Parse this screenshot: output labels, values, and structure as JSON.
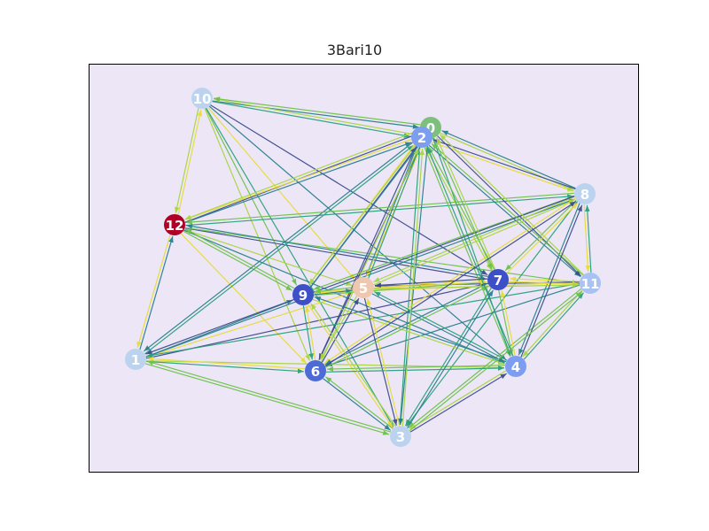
{
  "title": "3Bari10",
  "colors": {
    "plot_background": "#ede6f6",
    "frame": "#000000",
    "edge_palette": [
      "#3b4d8f",
      "#2a7f8e",
      "#28a17a",
      "#6cc24a",
      "#a8d640",
      "#e6dc3a"
    ]
  },
  "nodes": [
    {
      "id": "0",
      "color": "#7dbf7d"
    },
    {
      "id": "1",
      "color": "#bcd3f0"
    },
    {
      "id": "2",
      "color": "#7d9ef0"
    },
    {
      "id": "3",
      "color": "#bcd3f0"
    },
    {
      "id": "4",
      "color": "#7d9ef0"
    },
    {
      "id": "5",
      "color": "#efc6ae"
    },
    {
      "id": "6",
      "color": "#4c6ad8"
    },
    {
      "id": "7",
      "color": "#3d50c8"
    },
    {
      "id": "8",
      "color": "#bcd3f0"
    },
    {
      "id": "9",
      "color": "#3d50c8"
    },
    {
      "id": "10",
      "color": "#bcd3f0"
    },
    {
      "id": "11",
      "color": "#a7c2f3"
    },
    {
      "id": "12",
      "color": "#b10026"
    }
  ],
  "edges": [
    [
      "10",
      "0"
    ],
    [
      "10",
      "2"
    ],
    [
      "10",
      "9"
    ],
    [
      "10",
      "6"
    ],
    [
      "10",
      "5"
    ],
    [
      "10",
      "7"
    ],
    [
      "10",
      "4"
    ],
    [
      "10",
      "3"
    ],
    [
      "10",
      "12"
    ],
    [
      "12",
      "10"
    ],
    [
      "12",
      "1"
    ],
    [
      "12",
      "0"
    ],
    [
      "12",
      "2"
    ],
    [
      "12",
      "8"
    ],
    [
      "12",
      "9"
    ],
    [
      "12",
      "5"
    ],
    [
      "12",
      "6"
    ],
    [
      "12",
      "7"
    ],
    [
      "12",
      "4"
    ],
    [
      "12",
      "11"
    ],
    [
      "1",
      "12"
    ],
    [
      "1",
      "9"
    ],
    [
      "1",
      "6"
    ],
    [
      "1",
      "3"
    ],
    [
      "1",
      "4"
    ],
    [
      "1",
      "5"
    ],
    [
      "1",
      "7"
    ],
    [
      "1",
      "8"
    ],
    [
      "1",
      "2"
    ],
    [
      "2",
      "10"
    ],
    [
      "2",
      "12"
    ],
    [
      "2",
      "9"
    ],
    [
      "2",
      "6"
    ],
    [
      "2",
      "5"
    ],
    [
      "2",
      "3"
    ],
    [
      "2",
      "4"
    ],
    [
      "2",
      "7"
    ],
    [
      "2",
      "8"
    ],
    [
      "2",
      "11"
    ],
    [
      "2",
      "1"
    ],
    [
      "0",
      "10"
    ],
    [
      "0",
      "12"
    ],
    [
      "0",
      "9"
    ],
    [
      "0",
      "5"
    ],
    [
      "0",
      "6"
    ],
    [
      "0",
      "3"
    ],
    [
      "0",
      "4"
    ],
    [
      "0",
      "7"
    ],
    [
      "0",
      "8"
    ],
    [
      "0",
      "11"
    ],
    [
      "8",
      "2"
    ],
    [
      "8",
      "0"
    ],
    [
      "8",
      "12"
    ],
    [
      "8",
      "9"
    ],
    [
      "8",
      "5"
    ],
    [
      "8",
      "6"
    ],
    [
      "8",
      "1"
    ],
    [
      "8",
      "4"
    ],
    [
      "8",
      "3"
    ],
    [
      "8",
      "7"
    ],
    [
      "8",
      "11"
    ],
    [
      "11",
      "8"
    ],
    [
      "11",
      "2"
    ],
    [
      "11",
      "0"
    ],
    [
      "11",
      "9"
    ],
    [
      "11",
      "5"
    ],
    [
      "11",
      "6"
    ],
    [
      "11",
      "1"
    ],
    [
      "11",
      "3"
    ],
    [
      "11",
      "4"
    ],
    [
      "11",
      "7"
    ],
    [
      "7",
      "2"
    ],
    [
      "7",
      "0"
    ],
    [
      "7",
      "9"
    ],
    [
      "7",
      "5"
    ],
    [
      "7",
      "6"
    ],
    [
      "7",
      "3"
    ],
    [
      "7",
      "4"
    ],
    [
      "7",
      "11"
    ],
    [
      "7",
      "8"
    ],
    [
      "7",
      "12"
    ],
    [
      "9",
      "5"
    ],
    [
      "9",
      "6"
    ],
    [
      "9",
      "7"
    ],
    [
      "9",
      "4"
    ],
    [
      "9",
      "3"
    ],
    [
      "9",
      "2"
    ],
    [
      "9",
      "0"
    ],
    [
      "9",
      "12"
    ],
    [
      "5",
      "9"
    ],
    [
      "5",
      "6"
    ],
    [
      "5",
      "7"
    ],
    [
      "5",
      "3"
    ],
    [
      "5",
      "4"
    ],
    [
      "5",
      "2"
    ],
    [
      "5",
      "11"
    ],
    [
      "5",
      "8"
    ],
    [
      "6",
      "9"
    ],
    [
      "6",
      "5"
    ],
    [
      "6",
      "3"
    ],
    [
      "6",
      "4"
    ],
    [
      "6",
      "7"
    ],
    [
      "6",
      "2"
    ],
    [
      "6",
      "1"
    ],
    [
      "6",
      "8"
    ],
    [
      "4",
      "9"
    ],
    [
      "4",
      "5"
    ],
    [
      "4",
      "6"
    ],
    [
      "4",
      "3"
    ],
    [
      "4",
      "7"
    ],
    [
      "4",
      "8"
    ],
    [
      "4",
      "11"
    ],
    [
      "4",
      "2"
    ],
    [
      "3",
      "6"
    ],
    [
      "3",
      "9"
    ],
    [
      "3",
      "5"
    ],
    [
      "3",
      "4"
    ],
    [
      "3",
      "7"
    ],
    [
      "3",
      "11"
    ],
    [
      "3",
      "1"
    ],
    [
      "3",
      "2"
    ]
  ]
}
